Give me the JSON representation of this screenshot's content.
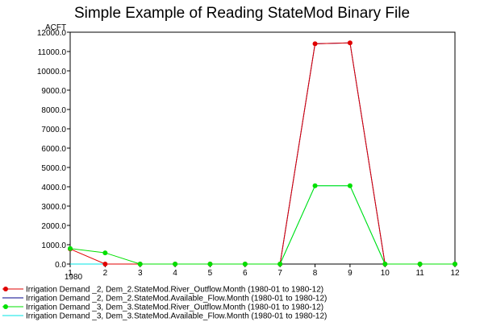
{
  "chart_data": {
    "type": "line",
    "title": "Simple Example of Reading StateMod Binary File",
    "ylabel": "ACFT",
    "xlabel": "",
    "x_sublabel": "1980",
    "ylim": [
      0,
      12000
    ],
    "yticks": [
      "0.0",
      "1000.0",
      "2000.0",
      "3000.0",
      "4000.0",
      "5000.0",
      "6000.0",
      "7000.0",
      "8000.0",
      "9000.0",
      "10000.0",
      "11000.0",
      "12000.0"
    ],
    "xlim": [
      1,
      12
    ],
    "xticks": [
      "1",
      "2",
      "3",
      "4",
      "5",
      "6",
      "7",
      "8",
      "9",
      "10",
      "11",
      "12"
    ],
    "x": [
      1,
      2,
      3,
      4,
      5,
      6,
      7,
      8,
      9,
      10,
      11,
      12
    ],
    "grid": false,
    "legend_position": "bottom",
    "series": [
      {
        "name": "Irrigation Demand _2, Dem_2.StateMod.River_Outflow.Month (1980-01 to 1980-12)",
        "color": "#e00000",
        "markers": true,
        "values": [
          780,
          0,
          0,
          0,
          0,
          0,
          0,
          11400,
          11450,
          0,
          0,
          0
        ]
      },
      {
        "name": "Irrigation Demand _2, Dem_2.StateMod.Available_Flow.Month (1980-01 to 1980-12)",
        "color": "#00008b",
        "markers": false,
        "values": [
          0,
          0,
          0,
          0,
          0,
          0,
          0,
          11400,
          11450,
          0,
          0,
          0
        ]
      },
      {
        "name": "Irrigation Demand _3, Dem_3.StateMod.River_Outflow.Month (1980-01 to 1980-12)",
        "color": "#00e000",
        "markers": true,
        "values": [
          800,
          580,
          0,
          0,
          0,
          0,
          0,
          4050,
          4050,
          0,
          0,
          0
        ]
      },
      {
        "name": "Irrigation Demand _3, Dem_3.StateMod.Available_Flow.Month (1980-01 to 1980-12)",
        "color": "#00e5e5",
        "markers": false,
        "values": [
          0,
          0,
          0,
          0,
          0,
          0,
          0,
          4050,
          4050,
          0,
          0,
          0
        ]
      }
    ]
  }
}
